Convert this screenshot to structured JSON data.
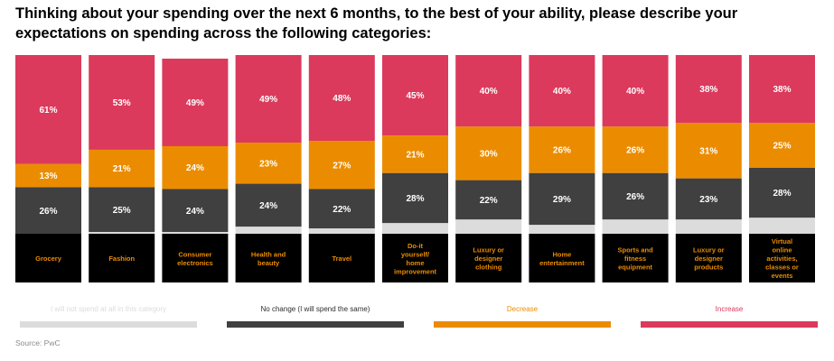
{
  "title": "Thinking about your spending over the next 6 months, to the best of your ability, please describe your expectations on spending across the following categories:",
  "source": "Source: PwC",
  "colors": {
    "will_not_spend": "#dcdcdc",
    "no_change": "#404040",
    "decrease": "#eb8c00",
    "increase": "#db3a5c",
    "category_band": "#000000",
    "category_text": "#eb8c00",
    "value_text": "#ffffff"
  },
  "chart_data": {
    "type": "bar",
    "stacked": true,
    "normalized": true,
    "title": "Thinking about your spending over the next 6 months, to the best of your ability, please describe your expectations on spending across the following categories:",
    "categories": [
      "Grocery",
      "Fashion",
      "Consumer electronics",
      "Health and beauty",
      "Travel",
      "Do-it yourself/ home improvement",
      "Luxury or designer clothing",
      "Home entertainment",
      "Sports and fitness equipment",
      "Luxury or designer products",
      "Virtual online activities, classes or events"
    ],
    "series": [
      {
        "name": "I will not spend at all in this category",
        "key": "will_not_spend",
        "values": [
          0,
          1,
          1,
          4,
          3,
          6,
          8,
          5,
          8,
          8,
          9
        ],
        "labeled": false
      },
      {
        "name": "No change (I will spend the same)",
        "key": "no_change",
        "values": [
          26,
          25,
          24,
          24,
          22,
          28,
          22,
          29,
          26,
          23,
          28
        ],
        "labeled": true
      },
      {
        "name": "Decrease",
        "key": "decrease",
        "values": [
          13,
          21,
          24,
          23,
          27,
          21,
          30,
          26,
          26,
          31,
          25
        ],
        "labeled": true
      },
      {
        "name": "Increase",
        "key": "increase",
        "values": [
          61,
          53,
          49,
          49,
          48,
          45,
          40,
          40,
          40,
          38,
          38
        ],
        "labeled": true
      }
    ],
    "legend_position": "bottom",
    "ylim": [
      0,
      100
    ]
  },
  "legend": [
    {
      "label": "I will not spend at all in this category",
      "key": "will_not_spend"
    },
    {
      "label": "No change (I will spend the same)",
      "key": "no_change"
    },
    {
      "label": "Decrease",
      "key": "decrease"
    },
    {
      "label": "Increase",
      "key": "increase"
    }
  ]
}
